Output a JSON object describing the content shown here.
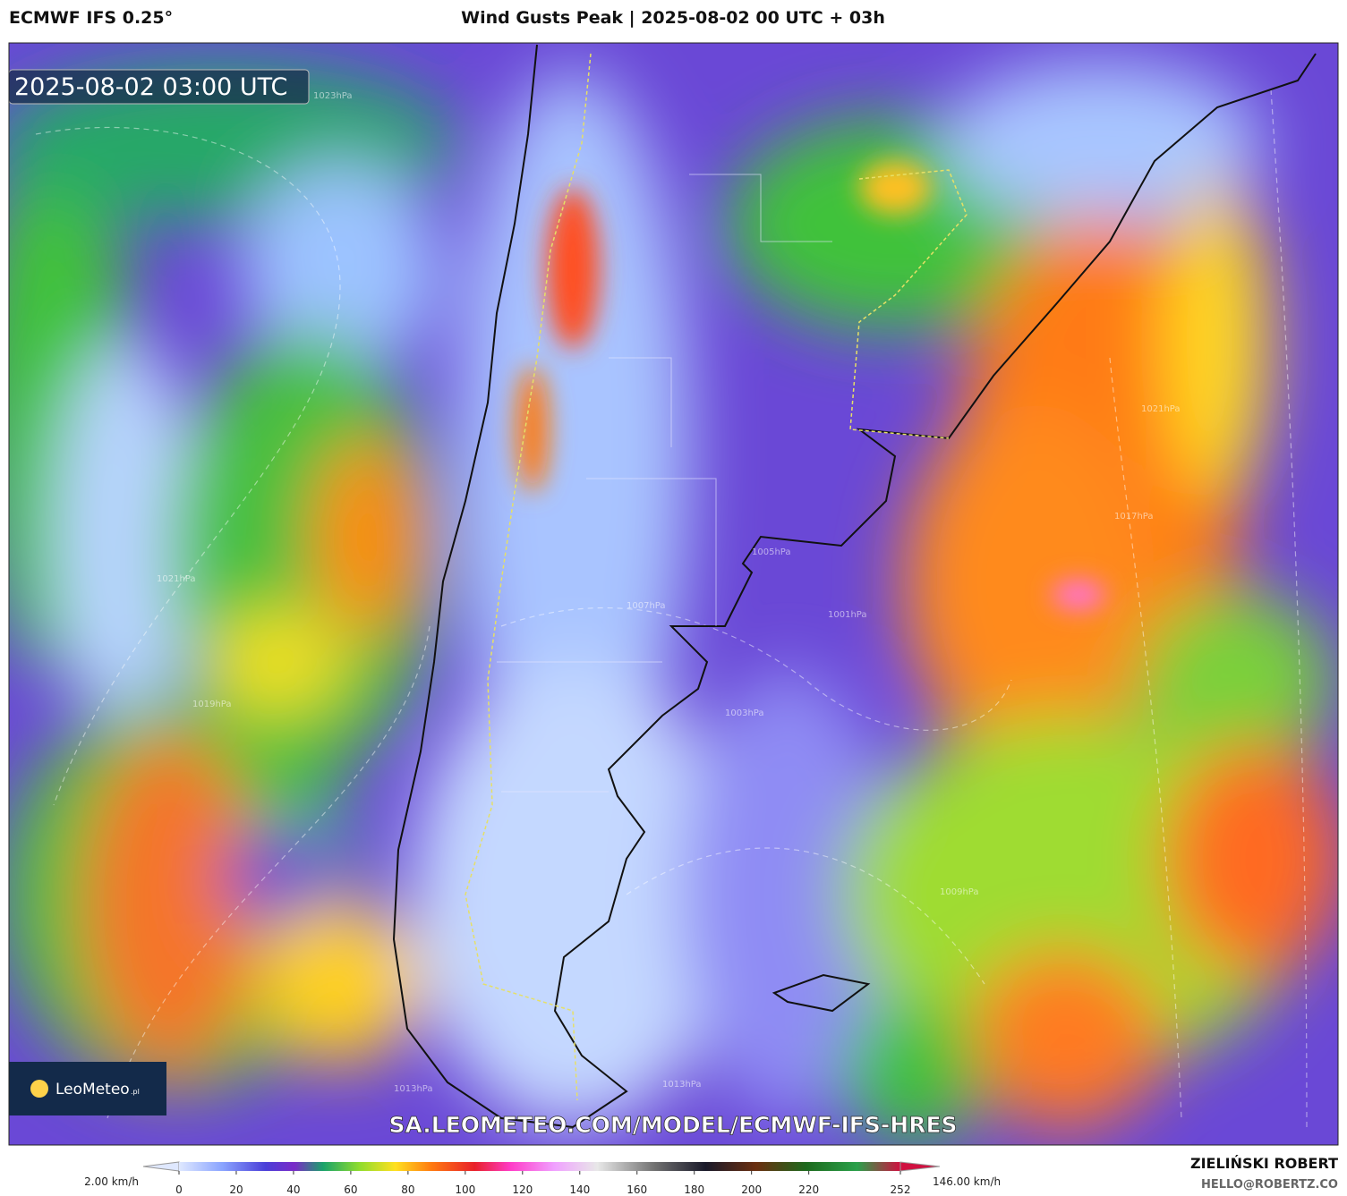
{
  "header": {
    "model": "ECMWF IFS 0.25°",
    "title": "Wind Gusts Peak | 2025-08-02 00 UTC + 03h"
  },
  "map": {
    "valid_time": "2025-08-02 03:00 UTC",
    "logo": "LeoMeteo",
    "logo_suffix": ".pl",
    "url": "SA.LEOMETEO.COM/MODEL/ECMWF-IFS-HRES",
    "isobar_labels": [
      "1023hPa",
      "1021hPa",
      "1019hPa",
      "1013hPa",
      "1007hPa",
      "1005hPa",
      "1001hPa",
      "1003hPa",
      "1009hPa",
      "1013hPa",
      "1017hPa",
      "1021hPa"
    ]
  },
  "colorbar": {
    "min_label": "2.00 km/h",
    "max_label": "146.00 km/h",
    "range": [
      0,
      252
    ],
    "ticks": [
      0,
      20,
      40,
      60,
      80,
      100,
      120,
      140,
      160,
      180,
      200,
      220,
      252
    ]
  },
  "footer": {
    "author": "ZIELIŃSKI ROBERT",
    "contact": "HELLO@ROBERTZ.CO"
  }
}
